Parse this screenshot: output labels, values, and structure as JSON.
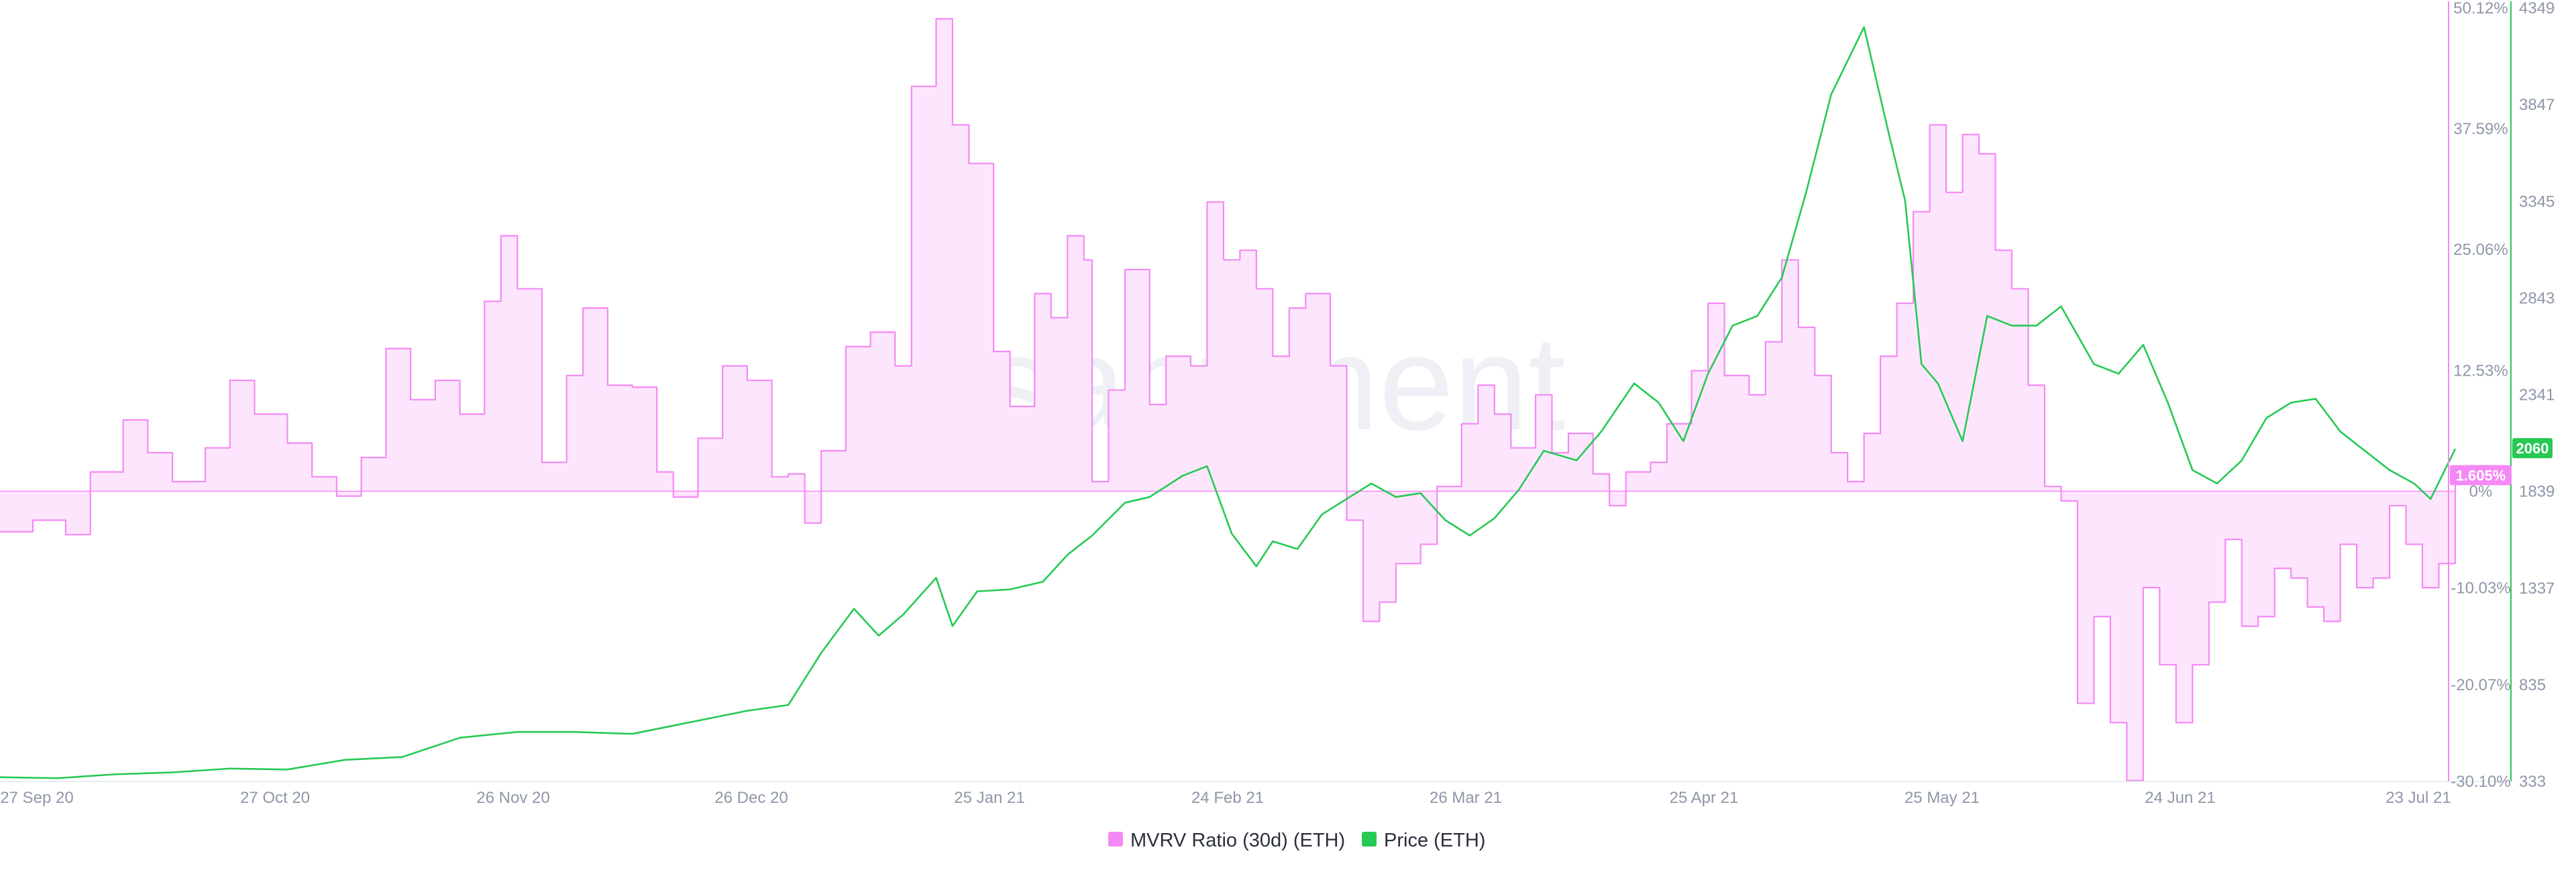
{
  "watermark": "santiment",
  "legend": [
    {
      "label": "MVRV Ratio (30d) (ETH)",
      "color": "#f489f5"
    },
    {
      "label": "Price (ETH)",
      "color": "#26c953"
    }
  ],
  "colors": {
    "mvrv": "#f489f5",
    "mvrv_fill": "#fde6fd",
    "price": "#26c953",
    "axis_text": "#8f96a8"
  },
  "badges": {
    "price": "2060",
    "mvrv": "1.605%"
  },
  "chart_data": {
    "type": "line",
    "title": "",
    "x_ticks": [
      "27 Sep 20",
      "27 Oct 20",
      "26 Nov 20",
      "26 Dec 20",
      "25 Jan 21",
      "24 Feb 21",
      "26 Mar 21",
      "25 Apr 21",
      "25 May 21",
      "24 Jun 21",
      "23 Jul 21"
    ],
    "x_range": [
      "2020-09-27",
      "2021-07-23"
    ],
    "mvrv_axis": {
      "ticks": [
        "50.12%",
        "37.59%",
        "25.06%",
        "12.53%",
        "0%",
        "-10.03%",
        "-20.07%",
        "-30.10%"
      ],
      "ylim": [
        -30.1,
        50.12
      ]
    },
    "price_axis": {
      "ticks": [
        "4349",
        "3847",
        "3345",
        "2843",
        "2341",
        "1839",
        "1337",
        "835",
        "333"
      ],
      "ylim": [
        333,
        4349
      ]
    },
    "series": [
      {
        "name": "MVRV Ratio (30d) (ETH)",
        "axis": "left",
        "points": [
          [
            "2020-09-27",
            -4.2
          ],
          [
            "2020-10-01",
            -3.0
          ],
          [
            "2020-10-05",
            -4.5
          ],
          [
            "2020-10-08",
            2.0
          ],
          [
            "2020-10-12",
            7.4
          ],
          [
            "2020-10-15",
            4.0
          ],
          [
            "2020-10-18",
            1.0
          ],
          [
            "2020-10-22",
            4.5
          ],
          [
            "2020-10-25",
            11.5
          ],
          [
            "2020-10-28",
            8.0
          ],
          [
            "2020-11-01",
            5.0
          ],
          [
            "2020-11-04",
            1.5
          ],
          [
            "2020-11-07",
            -0.5
          ],
          [
            "2020-11-10",
            3.5
          ],
          [
            "2020-11-13",
            14.8
          ],
          [
            "2020-11-16",
            9.5
          ],
          [
            "2020-11-19",
            11.5
          ],
          [
            "2020-11-22",
            8.0
          ],
          [
            "2020-11-25",
            19.7
          ],
          [
            "2020-11-27",
            26.5
          ],
          [
            "2020-11-29",
            21.0
          ],
          [
            "2020-12-02",
            3.0
          ],
          [
            "2020-12-05",
            12.0
          ],
          [
            "2020-12-07",
            19.0
          ],
          [
            "2020-12-10",
            11.0
          ],
          [
            "2020-12-13",
            10.8
          ],
          [
            "2020-12-16",
            2.0
          ],
          [
            "2020-12-18",
            -0.6
          ],
          [
            "2020-12-21",
            5.5
          ],
          [
            "2020-12-24",
            13.0
          ],
          [
            "2020-12-27",
            11.5
          ],
          [
            "2020-12-30",
            1.5
          ],
          [
            "2021-01-01",
            1.8
          ],
          [
            "2021-01-03",
            -3.3
          ],
          [
            "2021-01-05",
            4.2
          ],
          [
            "2021-01-08",
            15.0
          ],
          [
            "2021-01-11",
            16.5
          ],
          [
            "2021-01-14",
            13.0
          ],
          [
            "2021-01-16",
            42.0
          ],
          [
            "2021-01-19",
            49.0
          ],
          [
            "2021-01-21",
            38.0
          ],
          [
            "2021-01-23",
            34.0
          ],
          [
            "2021-01-26",
            14.5
          ],
          [
            "2021-01-28",
            8.8
          ],
          [
            "2021-01-31",
            20.5
          ],
          [
            "2021-02-02",
            18.0
          ],
          [
            "2021-02-04",
            26.5
          ],
          [
            "2021-02-06",
            24.0
          ],
          [
            "2021-02-07",
            1.0
          ],
          [
            "2021-02-09",
            10.5
          ],
          [
            "2021-02-11",
            23.0
          ],
          [
            "2021-02-14",
            9.0
          ],
          [
            "2021-02-16",
            14.0
          ],
          [
            "2021-02-19",
            13.0
          ],
          [
            "2021-02-21",
            30.0
          ],
          [
            "2021-02-23",
            24.0
          ],
          [
            "2021-02-25",
            25.0
          ],
          [
            "2021-02-27",
            21.0
          ],
          [
            "2021-03-01",
            14.0
          ],
          [
            "2021-03-03",
            19.0
          ],
          [
            "2021-03-05",
            20.5
          ],
          [
            "2021-03-08",
            13.0
          ],
          [
            "2021-03-10",
            -3.0
          ],
          [
            "2021-03-12",
            -13.5
          ],
          [
            "2021-03-14",
            -11.5
          ],
          [
            "2021-03-16",
            -7.5
          ],
          [
            "2021-03-19",
            -5.5
          ],
          [
            "2021-03-21",
            0.5
          ],
          [
            "2021-03-24",
            7.0
          ],
          [
            "2021-03-26",
            11.0
          ],
          [
            "2021-03-28",
            8.0
          ],
          [
            "2021-03-30",
            4.5
          ],
          [
            "2021-04-02",
            10.0
          ],
          [
            "2021-04-04",
            4.0
          ],
          [
            "2021-04-06",
            6.0
          ],
          [
            "2021-04-09",
            1.8
          ],
          [
            "2021-04-11",
            -1.5
          ],
          [
            "2021-04-13",
            2.0
          ],
          [
            "2021-04-16",
            3.0
          ],
          [
            "2021-04-18",
            7.0
          ],
          [
            "2021-04-21",
            12.5
          ],
          [
            "2021-04-23",
            19.5
          ],
          [
            "2021-04-25",
            12.0
          ],
          [
            "2021-04-28",
            10.0
          ],
          [
            "2021-04-30",
            15.5
          ],
          [
            "2021-05-02",
            24.0
          ],
          [
            "2021-05-04",
            17.0
          ],
          [
            "2021-05-06",
            12.0
          ],
          [
            "2021-05-08",
            4.0
          ],
          [
            "2021-05-10",
            1.0
          ],
          [
            "2021-05-12",
            6.0
          ],
          [
            "2021-05-14",
            14.0
          ],
          [
            "2021-05-16",
            19.5
          ],
          [
            "2021-05-18",
            29.0
          ],
          [
            "2021-05-20",
            38.0
          ],
          [
            "2021-05-22",
            31.0
          ],
          [
            "2021-05-24",
            37.0
          ],
          [
            "2021-05-26",
            35.0
          ],
          [
            "2021-05-28",
            25.0
          ],
          [
            "2021-05-30",
            21.0
          ],
          [
            "2021-06-01",
            11.0
          ],
          [
            "2021-06-03",
            0.5
          ],
          [
            "2021-06-05",
            -1.0
          ],
          [
            "2021-06-07",
            -22.0
          ],
          [
            "2021-06-09",
            -13.0
          ],
          [
            "2021-06-11",
            -24.0
          ],
          [
            "2021-06-13",
            -30.0
          ],
          [
            "2021-06-15",
            -10.0
          ],
          [
            "2021-06-17",
            -18.0
          ],
          [
            "2021-06-19",
            -24.0
          ],
          [
            "2021-06-21",
            -18.0
          ],
          [
            "2021-06-23",
            -11.5
          ],
          [
            "2021-06-25",
            -5.0
          ],
          [
            "2021-06-27",
            -14.0
          ],
          [
            "2021-06-29",
            -13.0
          ],
          [
            "2021-07-01",
            -8.0
          ],
          [
            "2021-07-03",
            -9.0
          ],
          [
            "2021-07-05",
            -12.0
          ],
          [
            "2021-07-07",
            -13.5
          ],
          [
            "2021-07-09",
            -5.5
          ],
          [
            "2021-07-11",
            -10.0
          ],
          [
            "2021-07-13",
            -9.0
          ],
          [
            "2021-07-15",
            -1.5
          ],
          [
            "2021-07-17",
            -5.5
          ],
          [
            "2021-07-19",
            -10.0
          ],
          [
            "2021-07-21",
            -7.5
          ],
          [
            "2021-07-23",
            1.6
          ]
        ]
      },
      {
        "name": "Price (ETH)",
        "axis": "right",
        "points": [
          [
            "2020-09-27",
            355
          ],
          [
            "2020-10-04",
            350
          ],
          [
            "2020-10-11",
            370
          ],
          [
            "2020-10-18",
            380
          ],
          [
            "2020-10-25",
            400
          ],
          [
            "2020-11-01",
            395
          ],
          [
            "2020-11-08",
            445
          ],
          [
            "2020-11-15",
            460
          ],
          [
            "2020-11-22",
            560
          ],
          [
            "2020-11-29",
            590
          ],
          [
            "2020-12-06",
            590
          ],
          [
            "2020-12-13",
            580
          ],
          [
            "2020-12-20",
            640
          ],
          [
            "2020-12-27",
            700
          ],
          [
            "2021-01-01",
            730
          ],
          [
            "2021-01-05",
            1000
          ],
          [
            "2021-01-09",
            1230
          ],
          [
            "2021-01-12",
            1090
          ],
          [
            "2021-01-15",
            1200
          ],
          [
            "2021-01-19",
            1390
          ],
          [
            "2021-01-21",
            1140
          ],
          [
            "2021-01-24",
            1320
          ],
          [
            "2021-01-28",
            1330
          ],
          [
            "2021-02-01",
            1370
          ],
          [
            "2021-02-04",
            1510
          ],
          [
            "2021-02-07",
            1610
          ],
          [
            "2021-02-11",
            1780
          ],
          [
            "2021-02-14",
            1810
          ],
          [
            "2021-02-18",
            1920
          ],
          [
            "2021-02-21",
            1970
          ],
          [
            "2021-02-24",
            1620
          ],
          [
            "2021-02-27",
            1450
          ],
          [
            "2021-03-01",
            1580
          ],
          [
            "2021-03-04",
            1540
          ],
          [
            "2021-03-07",
            1720
          ],
          [
            "2021-03-10",
            1800
          ],
          [
            "2021-03-13",
            1880
          ],
          [
            "2021-03-16",
            1810
          ],
          [
            "2021-03-19",
            1830
          ],
          [
            "2021-03-22",
            1690
          ],
          [
            "2021-03-25",
            1610
          ],
          [
            "2021-03-28",
            1700
          ],
          [
            "2021-03-31",
            1850
          ],
          [
            "2021-04-03",
            2050
          ],
          [
            "2021-04-07",
            2000
          ],
          [
            "2021-04-10",
            2150
          ],
          [
            "2021-04-14",
            2400
          ],
          [
            "2021-04-17",
            2300
          ],
          [
            "2021-04-20",
            2100
          ],
          [
            "2021-04-23",
            2450
          ],
          [
            "2021-04-26",
            2700
          ],
          [
            "2021-04-29",
            2750
          ],
          [
            "2021-05-02",
            2950
          ],
          [
            "2021-05-05",
            3400
          ],
          [
            "2021-05-08",
            3900
          ],
          [
            "2021-05-12",
            4250
          ],
          [
            "2021-05-15",
            3700
          ],
          [
            "2021-05-17",
            3350
          ],
          [
            "2021-05-19",
            2500
          ],
          [
            "2021-05-21",
            2400
          ],
          [
            "2021-05-24",
            2100
          ],
          [
            "2021-05-27",
            2750
          ],
          [
            "2021-05-30",
            2700
          ],
          [
            "2021-06-02",
            2700
          ],
          [
            "2021-06-05",
            2800
          ],
          [
            "2021-06-09",
            2500
          ],
          [
            "2021-06-12",
            2450
          ],
          [
            "2021-06-15",
            2600
          ],
          [
            "2021-06-18",
            2300
          ],
          [
            "2021-06-21",
            1950
          ],
          [
            "2021-06-24",
            1880
          ],
          [
            "2021-06-27",
            2000
          ],
          [
            "2021-06-30",
            2220
          ],
          [
            "2021-07-03",
            2300
          ],
          [
            "2021-07-06",
            2320
          ],
          [
            "2021-07-09",
            2150
          ],
          [
            "2021-07-12",
            2050
          ],
          [
            "2021-07-15",
            1950
          ],
          [
            "2021-07-18",
            1880
          ],
          [
            "2021-07-20",
            1800
          ],
          [
            "2021-07-23",
            2060
          ]
        ]
      }
    ]
  }
}
